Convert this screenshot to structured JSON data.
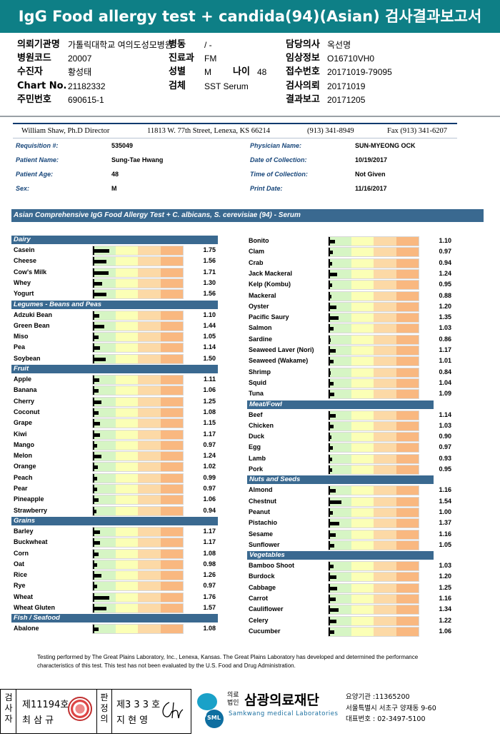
{
  "title": "IgG Food allergy test + candida(94)(Asian) 검사결과보고서",
  "header": {
    "col1": [
      {
        "label": "의뢰기관명",
        "value": "가톨릭대학교 여의도성모병원"
      },
      {
        "label": "병원코드",
        "value": "20007"
      },
      {
        "label": "수진자",
        "value": "황성태"
      },
      {
        "label": "Chart No.",
        "value": "21182332"
      },
      {
        "label": "주민번호",
        "value": "690615-1"
      }
    ],
    "ward_label": "병동",
    "ward_value": "/ -",
    "dept_label": "진료과",
    "dept_value": "FM",
    "sex_label": "성별",
    "sex_value": "M",
    "age_label": "나이",
    "age_value": "48",
    "specimen_label": "검체",
    "specimen_value": "SST Serum",
    "col3": [
      {
        "label": "담당의사",
        "value": "옥선명"
      },
      {
        "label": "임상정보",
        "value": "O16710VH0"
      },
      {
        "label": "접수번호",
        "value": "20171019-79095"
      },
      {
        "label": "검사의뢰",
        "value": "20171019"
      },
      {
        "label": "결과보고",
        "value": "20171205"
      }
    ]
  },
  "letterhead": {
    "director": "William Shaw, Ph.D  Director",
    "address": "11813 W. 77th Street, Lenexa, KS 66214",
    "phone": "(913) 341-8949",
    "fax": "Fax (913) 341-6207"
  },
  "patient_info": {
    "requisition_label": "Requisition #:",
    "requisition": "535049",
    "patient_name_label": "Patient Name:",
    "patient_name": "Sung-Tae Hwang",
    "patient_age_label": "Patient Age:",
    "patient_age": "48",
    "sex_label": "Sex:",
    "sex": "M",
    "physician_label": "Physician Name:",
    "physician": "SUN-MYEONG OCK",
    "date_collection_label": "Date of Collection:",
    "date_collection": "10/19/2017",
    "time_collection_label": "Time of Collection:",
    "time_collection": "Not Given",
    "print_date_label": "Print Date:",
    "print_date": "11/16/2017"
  },
  "panel_title": "Asian Comprehensive IgG Food Allergy Test + C. albicans, S. cerevisiae (94) - Serum",
  "bar_scale_max": 10,
  "bar_colors": [
    "#d6f5c4",
    "#fbffb6",
    "#fcd9a6",
    "#f9b880"
  ],
  "left_column": [
    {
      "category": "Dairy",
      "items": [
        {
          "name": "Casein",
          "value": 1.75
        },
        {
          "name": "Cheese",
          "value": 1.56
        },
        {
          "name": "Cow's Milk",
          "value": 1.71
        },
        {
          "name": "Whey",
          "value": 1.3
        },
        {
          "name": "Yogurt",
          "value": 1.56
        }
      ]
    },
    {
      "category": "Legumes - Beans and Peas",
      "items": [
        {
          "name": "Adzuki Bean",
          "value": 1.1
        },
        {
          "name": "Green Bean",
          "value": 1.44
        },
        {
          "name": "Miso",
          "value": 1.05
        },
        {
          "name": "Pea",
          "value": 1.14
        },
        {
          "name": "Soybean",
          "value": 1.5
        }
      ]
    },
    {
      "category": "Fruit",
      "items": [
        {
          "name": "Apple",
          "value": 1.11
        },
        {
          "name": "Banana",
          "value": 1.06
        },
        {
          "name": "Cherry",
          "value": 1.25
        },
        {
          "name": "Coconut",
          "value": 1.08
        },
        {
          "name": "Grape",
          "value": 1.15
        },
        {
          "name": "Kiwi",
          "value": 1.17
        },
        {
          "name": "Mango",
          "value": 0.97
        },
        {
          "name": "Melon",
          "value": 1.24
        },
        {
          "name": "Orange",
          "value": 1.02
        },
        {
          "name": "Peach",
          "value": 0.99
        },
        {
          "name": "Pear",
          "value": 0.97
        },
        {
          "name": "Pineapple",
          "value": 1.06
        },
        {
          "name": "Strawberry",
          "value": 0.94
        }
      ]
    },
    {
      "category": "Grains",
      "items": [
        {
          "name": "Barley",
          "value": 1.17
        },
        {
          "name": "Buckwheat",
          "value": 1.17
        },
        {
          "name": "Corn",
          "value": 1.08
        },
        {
          "name": "Oat",
          "value": 0.98
        },
        {
          "name": "Rice",
          "value": 1.26
        },
        {
          "name": "Rye",
          "value": 0.97
        },
        {
          "name": "Wheat",
          "value": 1.76
        },
        {
          "name": "Wheat Gluten",
          "value": 1.57
        }
      ]
    },
    {
      "category": "Fish / Seafood",
      "items": [
        {
          "name": "Abalone",
          "value": 1.08
        }
      ]
    }
  ],
  "right_column": [
    {
      "category": "",
      "items": [
        {
          "name": "Bonito",
          "value": 1.1
        },
        {
          "name": "Clam",
          "value": 0.97
        },
        {
          "name": "Crab",
          "value": 0.94
        },
        {
          "name": "Jack Mackeral",
          "value": 1.24
        },
        {
          "name": "Kelp (Kombu)",
          "value": 0.95
        },
        {
          "name": "Mackeral",
          "value": 0.88
        },
        {
          "name": "Oyster",
          "value": 1.2
        },
        {
          "name": "Pacific Saury",
          "value": 1.35
        },
        {
          "name": "Salmon",
          "value": 1.03
        },
        {
          "name": "Sardine",
          "value": 0.86
        },
        {
          "name": "Seaweed Laver (Nori)",
          "value": 1.17
        },
        {
          "name": "Seaweed (Wakame)",
          "value": 1.01
        },
        {
          "name": "Shrimp",
          "value": 0.84
        },
        {
          "name": "Squid",
          "value": 1.04
        },
        {
          "name": "Tuna",
          "value": 1.09
        }
      ]
    },
    {
      "category": "Meat/Fowl",
      "items": [
        {
          "name": "Beef",
          "value": 1.14
        },
        {
          "name": "Chicken",
          "value": 1.03
        },
        {
          "name": "Duck",
          "value": 0.9
        },
        {
          "name": "Egg",
          "value": 0.97
        },
        {
          "name": "Lamb",
          "value": 0.93
        },
        {
          "name": "Pork",
          "value": 0.95
        }
      ]
    },
    {
      "category": "Nuts and Seeds",
      "items": [
        {
          "name": "Almond",
          "value": 1.16
        },
        {
          "name": "Chestnut",
          "value": 1.54
        },
        {
          "name": "Peanut",
          "value": 1.0
        },
        {
          "name": "Pistachio",
          "value": 1.37
        },
        {
          "name": "Sesame",
          "value": 1.16
        },
        {
          "name": "Sunflower",
          "value": 1.05
        }
      ]
    },
    {
      "category": "Vegetables",
      "items": [
        {
          "name": "Bamboo Shoot",
          "value": 1.03
        },
        {
          "name": "Burdock",
          "value": 1.2
        },
        {
          "name": "Cabbage",
          "value": 1.25
        },
        {
          "name": "Carrot",
          "value": 1.16
        },
        {
          "name": "Cauliflower",
          "value": 1.34
        },
        {
          "name": "Celery",
          "value": 1.22
        },
        {
          "name": "Cucumber",
          "value": 1.06
        }
      ]
    }
  ],
  "disclaimer": "Testing performed by The Great Plains Laboratory, Inc., Lenexa, Kansas.  The Great Plains Laboratory has developed and determined the performance characteristics of this test.  This test has not been evaluated by the U.S. Food and Drug Administration.",
  "footer": {
    "tester_label": "검사자",
    "tester_license": "제11194호",
    "tester_name": "최 삼 규",
    "reviewer_label": "판정의",
    "reviewer_license": "제3 3 3 호",
    "reviewer_name": "지 현 영",
    "logo_text": "SML",
    "org_prefix": "의료법인",
    "org_name": "삼광의료재단",
    "org_eng": "Samkwang medical Laboratories",
    "care_code": "요양기관 :11365200",
    "address": "서울특별시 서초구 양재동 9-60",
    "phone": "대표번호 : 02-3497-5100"
  }
}
